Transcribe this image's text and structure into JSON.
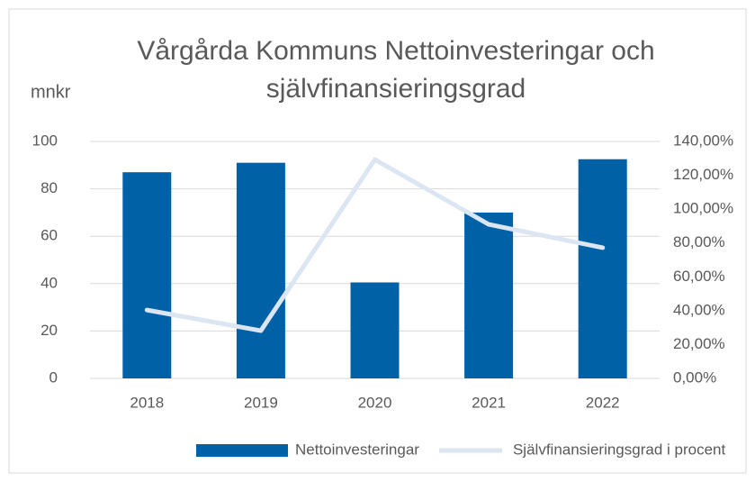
{
  "chart_data": {
    "type": "bar_line",
    "title": "Vårgårda Kommuns Nettoinvesteringar och självfinansieringsgrad",
    "ylabel": "mnkr",
    "categories": [
      "2018",
      "2019",
      "2020",
      "2021",
      "2022"
    ],
    "series": [
      {
        "name": "Nettoinvesteringar",
        "type": "bar",
        "color": "#0061a6",
        "values": [
          87,
          91,
          40.5,
          70,
          92.5
        ]
      },
      {
        "name": "Självfinansieringsgrad i procent",
        "type": "line",
        "axis": "y2",
        "color": "#dce6f2",
        "values": [
          40.4,
          28.2,
          129.3,
          91,
          77.2
        ]
      }
    ],
    "ylim": [
      0,
      100
    ],
    "yticks": [
      0,
      20,
      40,
      60,
      80,
      100
    ],
    "y2lim": [
      0,
      140
    ],
    "y2ticks": [
      {
        "value": 0,
        "label": "0,00%"
      },
      {
        "value": 20,
        "label": "20,00%"
      },
      {
        "value": 40,
        "label": "40,00%"
      },
      {
        "value": 60,
        "label": "60,00%"
      },
      {
        "value": 80,
        "label": "80,00%"
      },
      {
        "value": 100,
        "label": "100,00%"
      },
      {
        "value": 120,
        "label": "120,00%"
      },
      {
        "value": 140,
        "label": "140,00%"
      }
    ],
    "grid": true,
    "legend": "bottom"
  }
}
